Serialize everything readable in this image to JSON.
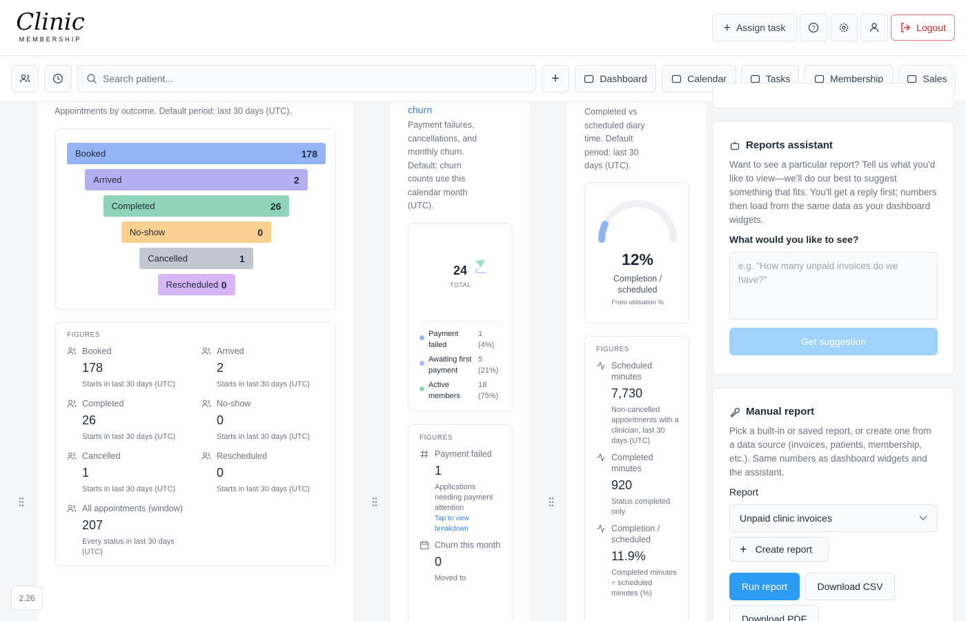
{
  "header": {
    "logo_title": "Clinic",
    "logo_subtitle": "MEMBERSHIP",
    "assign": "Assign task",
    "logout": "Logout"
  },
  "toolbar": {
    "search_placeholder": "Search patient...",
    "nav": [
      "Dashboard",
      "Calendar",
      "Tasks",
      "Membership",
      "Sales"
    ]
  },
  "appointments": {
    "subtitle": "Appointments by outcome. Default period: last 30 days (UTC).",
    "funnel": [
      {
        "label": "Booked",
        "value": "178"
      },
      {
        "label": "Arrived",
        "value": "2"
      },
      {
        "label": "Completed",
        "value": "26"
      },
      {
        "label": "No-show",
        "value": "0"
      },
      {
        "label": "Cancelled",
        "value": "1"
      },
      {
        "label": "Rescheduled",
        "value": "0"
      }
    ],
    "figures_heading": "FIGURES",
    "figures": [
      {
        "label": "Booked",
        "value": "178",
        "note": "Starts in last 30 days (UTC)"
      },
      {
        "label": "Arrived",
        "value": "2",
        "note": "Starts in last 30 days (UTC)"
      },
      {
        "label": "Completed",
        "value": "26",
        "note": "Starts in last 30 days (UTC)"
      },
      {
        "label": "No-show",
        "value": "0",
        "note": "Starts in last 30 days (UTC)"
      },
      {
        "label": "Cancelled",
        "value": "1",
        "note": "Starts in last 30 days (UTC)"
      },
      {
        "label": "Rescheduled",
        "value": "0",
        "note": "Starts in last 30 days (UTC)"
      },
      {
        "label": "All appointments (window)",
        "value": "207",
        "note": "Every status in last 30 days (UTC)"
      }
    ]
  },
  "churn": {
    "title": "churn",
    "description": "Payment failures, cancellations, and monthly churn. Default: churn counts use this calendar month (UTC).",
    "total": "24",
    "total_label": "TOTAL",
    "legend": [
      {
        "label": "Payment failed",
        "value": "1",
        "share": "(4%)"
      },
      {
        "label": "Awaiting first payment",
        "value": "5",
        "share": "(21%)"
      },
      {
        "label": "Active members",
        "value": "18",
        "share": "(75%)"
      }
    ],
    "figures_heading": "FIGURES",
    "figures": [
      {
        "label": "Payment failed",
        "value": "1",
        "note": "Applications needing payment attention",
        "link": "Tap to view breakdown"
      },
      {
        "label": "Churn this month",
        "value": "0",
        "note": "Moved to"
      }
    ]
  },
  "utilisation": {
    "description": "Completed vs scheduled diary time. Default period: last 30 days (UTC).",
    "gauge_value": "12%",
    "gauge_label": "Completion / scheduled",
    "gauge_note": "From utilisation %",
    "figures_heading": "FIGURES",
    "figures": [
      {
        "label": "Scheduled minutes",
        "value": "7,730",
        "note": "Non-cancelled appointments with a clinician, last 30 days (UTC)"
      },
      {
        "label": "Completed minutes",
        "value": "920",
        "note": "Status completed only"
      },
      {
        "label": "Completion / scheduled",
        "value": "11.9%",
        "note": "Completed minutes ÷ scheduled minutes (%)"
      }
    ]
  },
  "assistant": {
    "title": "Reports assistant",
    "body": "Want to see a particular report? Tell us what you'd like to view—we'll do our best to suggest something that fits. You'll get a reply first; numbers then load from the same data as your dashboard widgets.",
    "question": "What would you like to see?",
    "placeholder": "e.g. \"How many unpaid invoices do we have?\"",
    "button": "Get suggestion"
  },
  "manual": {
    "title": "Manual report",
    "body": "Pick a built-in or saved report, or create one from a data source (invoices, patients, membership, etc.). Same numbers as dashboard widgets and the assistant.",
    "report_label": "Report",
    "report_select": "Unpaid clinic invoices",
    "create": "Create report",
    "run": "Run report",
    "download_csv": "Download CSV",
    "download_pdf": "Download PDF"
  },
  "version": "2.26"
}
